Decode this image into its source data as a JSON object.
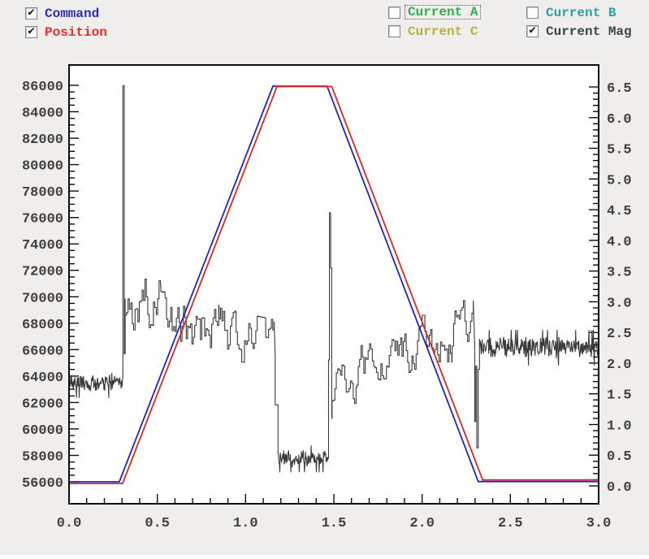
{
  "legend": {
    "items": [
      {
        "id": "command",
        "label": "Command",
        "checked": true,
        "focused": false,
        "color": "#2a2acd"
      },
      {
        "id": "position",
        "label": "Position",
        "checked": true,
        "focused": false,
        "color": "#ee2a2a"
      },
      {
        "id": "current_a",
        "label": "Current A",
        "checked": false,
        "focused": true,
        "color": "#2db04e"
      },
      {
        "id": "current_b",
        "label": "Current B",
        "checked": false,
        "focused": false,
        "color": "#2f9f9f"
      },
      {
        "id": "current_c",
        "label": "Current C",
        "checked": false,
        "focused": false,
        "color": "#b5b33f"
      },
      {
        "id": "current_mag",
        "label": "Current Mag",
        "checked": true,
        "focused": false,
        "color": "#3c4646"
      }
    ]
  },
  "chart_data": {
    "type": "line",
    "title": "",
    "grid": false,
    "x_axis": {
      "min": 0.0,
      "max": 3.0,
      "major": 0.5,
      "minor": 0.1,
      "tick_labels": [
        "0.0",
        "0.5",
        "1.0",
        "1.5",
        "2.0",
        "2.5",
        "3.0"
      ]
    },
    "y_axis_left": {
      "min": 56000,
      "max": 86000,
      "major": 2000,
      "minor": 500,
      "tick_labels": [
        "86000",
        "84000",
        "82000",
        "80000",
        "78000",
        "76000",
        "74000",
        "72000",
        "70000",
        "68000",
        "66000",
        "64000",
        "62000",
        "60000",
        "58000",
        "56000"
      ]
    },
    "y_axis_right": {
      "min": 0.0,
      "max": 6.5,
      "major": 0.5,
      "minor": 0.1,
      "tick_labels": [
        "6.5",
        "6.0",
        "5.5",
        "5.0",
        "4.5",
        "4.0",
        "3.5",
        "3.0",
        "2.5",
        "2.0",
        "1.5",
        "1.0",
        "0.5",
        "0.0"
      ]
    },
    "series": [
      {
        "name": "Command",
        "axis": "left",
        "color": "#2222cc",
        "width": 1.8,
        "points": [
          [
            0.0,
            56000
          ],
          [
            0.285,
            56000
          ],
          [
            1.155,
            85940
          ],
          [
            1.462,
            85940
          ],
          [
            2.318,
            56020
          ],
          [
            3.0,
            56020
          ]
        ]
      },
      {
        "name": "Position",
        "axis": "left",
        "color": "#e02525",
        "width": 1.8,
        "points": [
          [
            0.0,
            55870
          ],
          [
            0.303,
            55870
          ],
          [
            1.178,
            85910
          ],
          [
            1.488,
            85910
          ],
          [
            2.343,
            56150
          ],
          [
            3.0,
            56150
          ]
        ]
      },
      {
        "name": "Current Mag",
        "axis": "right",
        "color": "#3a3a3a",
        "width": 1.1,
        "segments": [
          {
            "mode": "dense",
            "x0": 0.0,
            "x1": 0.302,
            "base": 1.68,
            "amp": 0.17,
            "drift": 0
          },
          {
            "mode": "points",
            "pts": [
              [
                0.305,
                1.8
              ],
              [
                0.305,
                6.52
              ],
              [
                0.313,
                6.52
              ],
              [
                0.313,
                2.15
              ],
              [
                0.318,
                2.15
              ],
              [
                0.318,
                3.05
              ]
            ]
          },
          {
            "mode": "walk",
            "x0": 0.318,
            "x1": 0.52,
            "base": 3.1,
            "amp": 0.5,
            "drift": -0.25
          },
          {
            "mode": "walk",
            "x0": 0.52,
            "x1": 0.85,
            "base": 2.72,
            "amp": 0.45,
            "drift": -0.12
          },
          {
            "mode": "walk",
            "x0": 0.85,
            "x1": 1.168,
            "base": 2.5,
            "amp": 0.4,
            "drift": -0.2
          },
          {
            "mode": "points",
            "pts": [
              [
                1.168,
                2.1
              ],
              [
                1.168,
                1.32
              ],
              [
                1.184,
                1.32
              ],
              [
                1.184,
                0.62
              ]
            ]
          },
          {
            "mode": "dense",
            "x0": 1.184,
            "x1": 1.468,
            "base": 0.44,
            "amp": 0.15,
            "drift": 0
          },
          {
            "mode": "points",
            "pts": [
              [
                1.47,
                0.45
              ],
              [
                1.47,
                2.05
              ],
              [
                1.475,
                2.05
              ],
              [
                1.475,
                4.45
              ],
              [
                1.482,
                4.45
              ],
              [
                1.482,
                3.55
              ],
              [
                1.488,
                3.55
              ],
              [
                1.488,
                1.1
              ]
            ]
          },
          {
            "mode": "walk",
            "x0": 1.49,
            "x1": 1.63,
            "base": 1.6,
            "amp": 0.42,
            "drift": 0.15
          },
          {
            "mode": "walk",
            "x0": 1.63,
            "x1": 2.0,
            "base": 2.0,
            "amp": 0.36,
            "drift": 0.25
          },
          {
            "mode": "walk",
            "x0": 2.0,
            "x1": 2.17,
            "base": 2.4,
            "amp": 0.38,
            "drift": 0
          },
          {
            "mode": "walk",
            "x0": 2.17,
            "x1": 2.295,
            "base": 2.6,
            "amp": 0.42,
            "drift": 0
          },
          {
            "mode": "points",
            "pts": [
              [
                2.298,
                2.3
              ],
              [
                2.298,
                1.05
              ],
              [
                2.304,
                1.05
              ],
              [
                2.304,
                1.95
              ],
              [
                2.31,
                1.95
              ],
              [
                2.31,
                0.62
              ],
              [
                2.318,
                0.62
              ],
              [
                2.318,
                1.9
              ]
            ]
          },
          {
            "mode": "dense",
            "x0": 2.325,
            "x1": 3.0,
            "base": 2.25,
            "amp": 0.2,
            "drift": 0
          }
        ]
      }
    ]
  }
}
